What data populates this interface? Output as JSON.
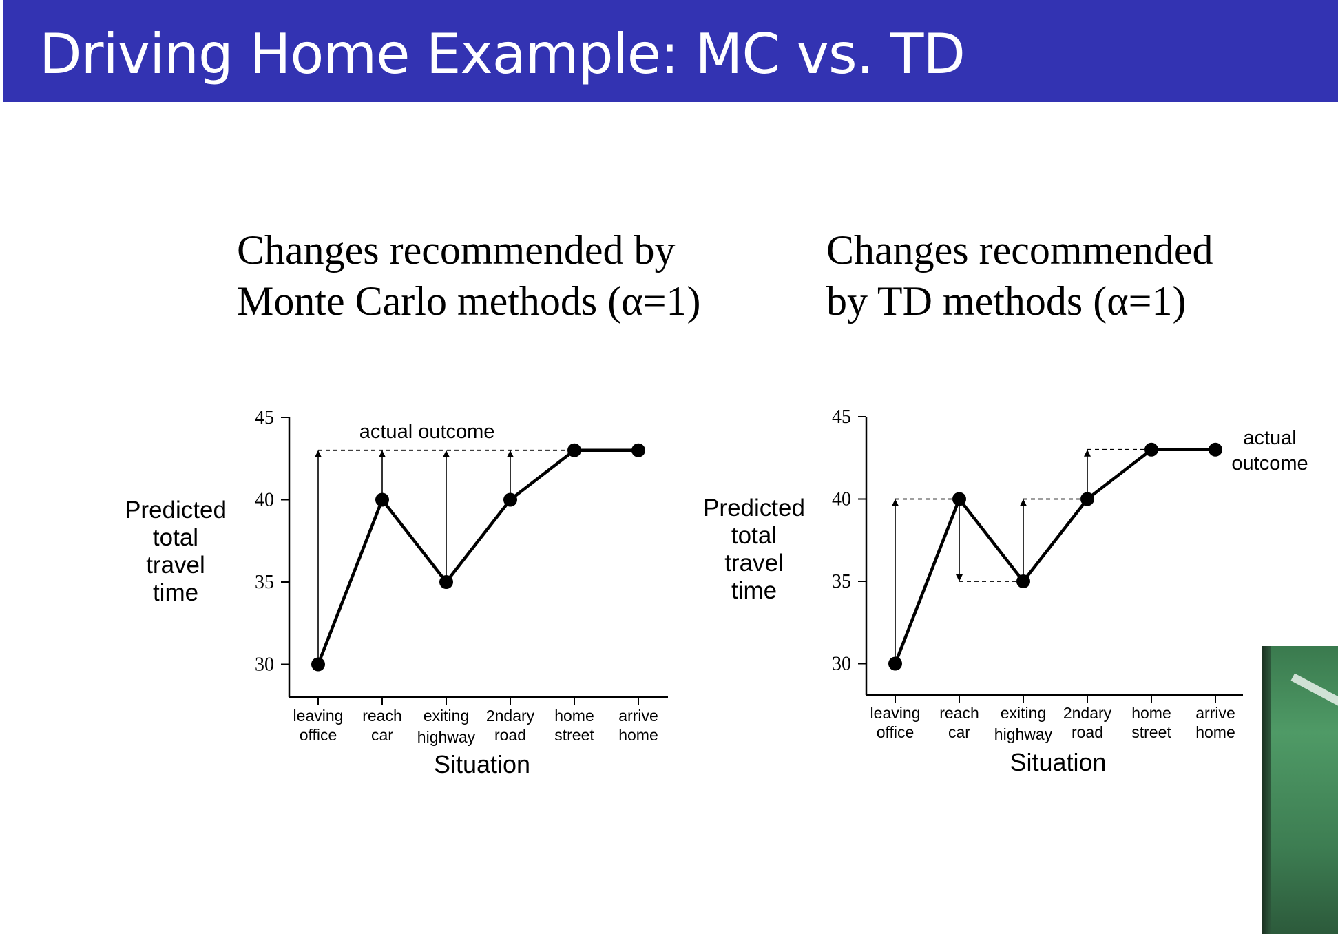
{
  "slide": {
    "title": "Driving Home Example: MC vs. TD"
  },
  "panels": {
    "left": {
      "title_line1": "Changes recommended by",
      "title_line2": "Monte Carlo methods (α=1)"
    },
    "right": {
      "title_line1": "Changes recommended",
      "title_line2": "by TD methods (α=1)"
    }
  },
  "chart_data": [
    {
      "type": "line",
      "method": "Monte Carlo",
      "categories": [
        [
          "leaving",
          "office"
        ],
        [
          "reach",
          "car"
        ],
        [
          "exiting",
          "highway"
        ],
        [
          "2ndary",
          "road"
        ],
        [
          "home",
          "street"
        ],
        [
          "arrive",
          "home"
        ]
      ],
      "values": [
        30,
        40,
        35,
        40,
        43,
        43
      ],
      "ylabel": [
        "Predicted",
        "total",
        "travel",
        "time"
      ],
      "xlabel": "Situation",
      "ylim": [
        28,
        45
      ],
      "yticks": [
        30,
        35,
        40,
        45
      ],
      "arrows": [
        {
          "category_index": 0,
          "from": 30,
          "to": 43
        },
        {
          "category_index": 1,
          "from": 40,
          "to": 43
        },
        {
          "category_index": 2,
          "from": 35,
          "to": 43
        },
        {
          "category_index": 3,
          "from": 40,
          "to": 43
        }
      ],
      "reference_lines": [
        {
          "from_index": 0,
          "to_index": 4,
          "value": 43
        }
      ],
      "annotation": {
        "lines": [
          "actual outcome"
        ],
        "at_index": 1.7,
        "value": 43.4
      }
    },
    {
      "type": "line",
      "method": "TD",
      "categories": [
        [
          "leaving",
          "office"
        ],
        [
          "reach",
          "car"
        ],
        [
          "exiting",
          "highway"
        ],
        [
          "2ndary",
          "road"
        ],
        [
          "home",
          "street"
        ],
        [
          "arrive",
          "home"
        ]
      ],
      "values": [
        30,
        40,
        35,
        40,
        43,
        43
      ],
      "ylabel": [
        "Predicted",
        "total",
        "travel",
        "time"
      ],
      "xlabel": "Situation",
      "ylim": [
        28,
        45
      ],
      "yticks": [
        30,
        35,
        40,
        45
      ],
      "arrows": [
        {
          "category_index": 0,
          "from": 30,
          "to": 40
        },
        {
          "category_index": 1,
          "from": 40,
          "to": 35
        },
        {
          "category_index": 2,
          "from": 35,
          "to": 40
        },
        {
          "category_index": 3,
          "from": 40,
          "to": 43
        }
      ],
      "reference_lines": [
        {
          "from_index": 0,
          "to_index": 1,
          "value": 40
        },
        {
          "from_index": 1,
          "to_index": 2,
          "value": 35
        },
        {
          "from_index": 2,
          "to_index": 3,
          "value": 40
        },
        {
          "from_index": 3,
          "to_index": 4,
          "value": 43
        }
      ],
      "annotation": {
        "lines": [
          "actual",
          "outcome"
        ],
        "at_index": 5.85,
        "value": 43
      }
    }
  ]
}
